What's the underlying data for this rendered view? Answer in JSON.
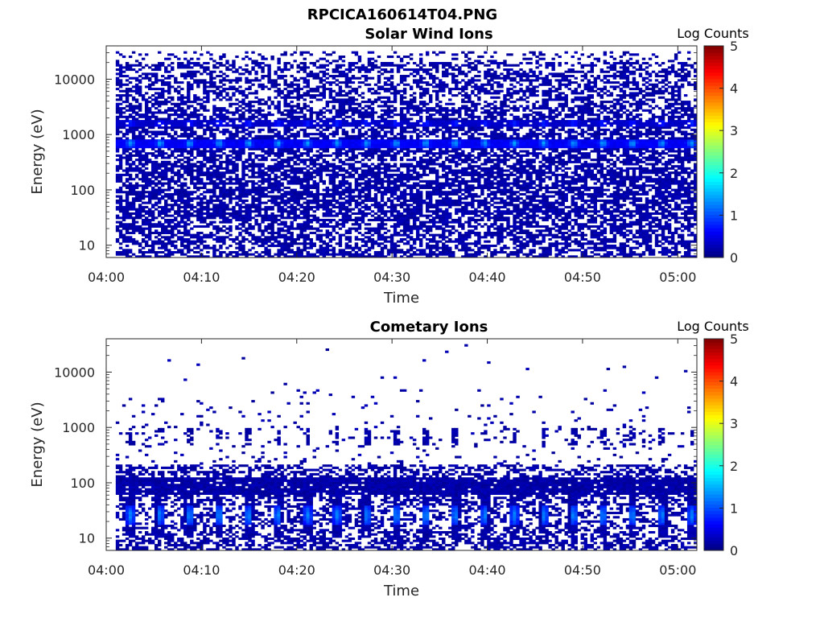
{
  "figure_title": "RPCICA160614T04.PNG",
  "chart_data": [
    {
      "type": "heatmap",
      "title": "Solar Wind Ions",
      "xlabel": "Time",
      "ylabel": "Energy (eV)",
      "yscale": "log",
      "xlim": [
        "04:00",
        "05:02"
      ],
      "ylim": [
        6,
        40000
      ],
      "xticks": [
        "04:00",
        "04:10",
        "04:20",
        "04:30",
        "04:40",
        "04:50",
        "05:00"
      ],
      "yticks": [
        "10",
        "100",
        "1000",
        "10000"
      ],
      "data_time_range": [
        "04:01",
        "05:02"
      ],
      "colorbar": {
        "label": "Log Counts",
        "range": [
          0,
          5
        ],
        "ticks": [
          "0",
          "1",
          "2",
          "3",
          "4",
          "5"
        ],
        "colormap": "jet"
      },
      "features": [
        {
          "description": "sparse background counts (log ≈ 0–0.3) filling 6 eV – 30 keV, denser below 300 eV"
        },
        {
          "description": "solar wind proton band",
          "energy_eV": 700,
          "log_counts": 1.2,
          "periodic_pulses": true
        },
        {
          "description": "faint alpha band",
          "energy_eV": 1600,
          "log_counts": 0.7
        }
      ]
    },
    {
      "type": "heatmap",
      "title": "Cometary Ions",
      "xlabel": "Time",
      "ylabel": "Energy (eV)",
      "yscale": "log",
      "xlim": [
        "04:00",
        "05:02"
      ],
      "ylim": [
        6,
        40000
      ],
      "xticks": [
        "04:00",
        "04:10",
        "04:20",
        "04:30",
        "04:40",
        "04:50",
        "05:00"
      ],
      "yticks": [
        "10",
        "100",
        "1000",
        "10000"
      ],
      "data_time_range": [
        "04:01",
        "05:02"
      ],
      "colorbar": {
        "label": "Log Counts",
        "range": [
          0,
          5
        ],
        "ticks": [
          "0",
          "1",
          "2",
          "3",
          "4",
          "5"
        ],
        "colormap": "jet"
      },
      "features": [
        {
          "description": "dense low energy cometary ions",
          "energy_eV": [
            8,
            200
          ],
          "log_counts": 0.3
        },
        {
          "description": "periodic enhancements",
          "energy_eV": [
            15,
            45
          ],
          "log_counts": 1.1,
          "periodic_pulses": true
        },
        {
          "description": "periodic patches",
          "energy_eV": [
            500,
            1000
          ],
          "log_counts": 0.2
        },
        {
          "description": "sparse high energy counts up to ~30 keV",
          "log_counts": 0.1
        }
      ]
    }
  ]
}
